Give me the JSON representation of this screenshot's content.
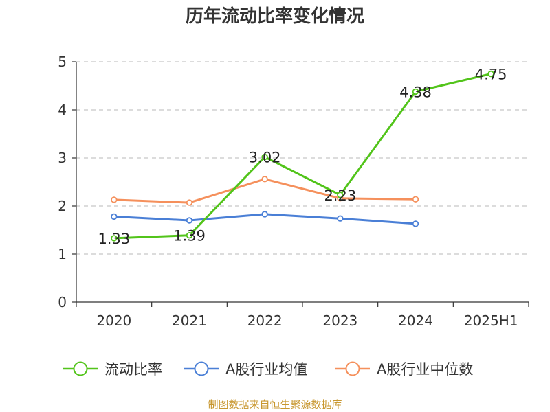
{
  "chart_data": {
    "type": "line",
    "title": "历年流动比率变化情况",
    "categories": [
      "2020",
      "2021",
      "2022",
      "2023",
      "2024",
      "2025H1"
    ],
    "ylim": [
      0,
      5
    ],
    "yticks": [
      "0",
      "1",
      "2",
      "3",
      "4",
      "5"
    ],
    "grid": true,
    "legend_position": "bottom",
    "series": [
      {
        "name": "流动比率",
        "color": "#52c41a",
        "values": [
          1.33,
          1.39,
          3.02,
          2.23,
          4.38,
          4.75
        ],
        "labels": [
          "1.33",
          "1.39",
          "3.02",
          "2.23",
          "4.38",
          "4.75"
        ]
      },
      {
        "name": "A股行业均值",
        "color": "#4a7fd6",
        "values": [
          1.78,
          1.7,
          1.83,
          1.74,
          1.63,
          null
        ]
      },
      {
        "name": "A股行业中位数",
        "color": "#f5905c",
        "values": [
          2.13,
          2.07,
          2.56,
          2.16,
          2.14,
          null
        ]
      }
    ]
  },
  "source": {
    "text": "制图数据来自恒生聚源数据库",
    "color": "#c8972f"
  }
}
